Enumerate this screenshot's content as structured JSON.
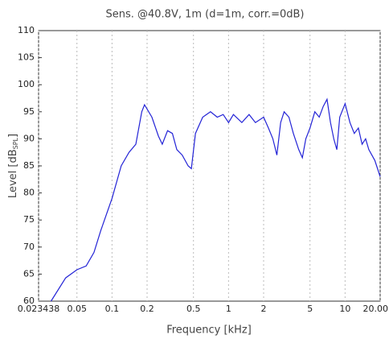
{
  "chart_data": {
    "type": "line",
    "title": "Sens. @40.8V, 1m (d=1m, corr.=0dB)",
    "xlabel": "Frequency [kHz]",
    "ylabel": [
      "Level [dB",
      "SPL",
      "]"
    ],
    "x_log": true,
    "grid": true,
    "xlim": [
      0.023438,
      20
    ],
    "ylim": [
      60,
      110
    ],
    "xticks": [
      0.023438,
      0.05,
      0.1,
      0.2,
      0.5,
      1,
      2,
      5,
      10,
      {
        "value": 20,
        "label": "20.00"
      }
    ],
    "yticks": [
      60,
      65,
      70,
      75,
      80,
      85,
      90,
      95,
      100,
      105,
      110
    ],
    "series": [
      {
        "color": "#2323d6",
        "x": [
          0.03,
          0.04,
          0.05,
          0.06,
          0.07,
          0.08,
          0.1,
          0.12,
          0.14,
          0.16,
          0.18,
          0.19,
          0.22,
          0.25,
          0.27,
          0.3,
          0.33,
          0.36,
          0.4,
          0.45,
          0.48,
          0.52,
          0.6,
          0.7,
          0.8,
          0.9,
          1.0,
          1.1,
          1.3,
          1.5,
          1.7,
          2.0,
          2.2,
          2.4,
          2.6,
          2.8,
          3.0,
          3.3,
          3.6,
          4.0,
          4.3,
          4.6,
          5.0,
          5.5,
          6.0,
          6.5,
          7.0,
          7.5,
          8.0,
          8.5,
          9.0,
          10,
          11,
          12,
          13,
          14,
          15,
          16,
          18,
          20
        ],
        "values": [
          60,
          64.3,
          65.8,
          66.5,
          69,
          73,
          79,
          85,
          87.5,
          89,
          95,
          96.3,
          94,
          90.5,
          89,
          91.5,
          91,
          88,
          87,
          85,
          84.5,
          91,
          94,
          95,
          94,
          94.5,
          93,
          94.5,
          93,
          94.5,
          93,
          94,
          92,
          90,
          87,
          93,
          95,
          94,
          91,
          88,
          86.5,
          90,
          92,
          95,
          94,
          96,
          97.3,
          93,
          90,
          88,
          94,
          96.5,
          93,
          91,
          92,
          89,
          90,
          88,
          86,
          83
        ]
      }
    ]
  }
}
